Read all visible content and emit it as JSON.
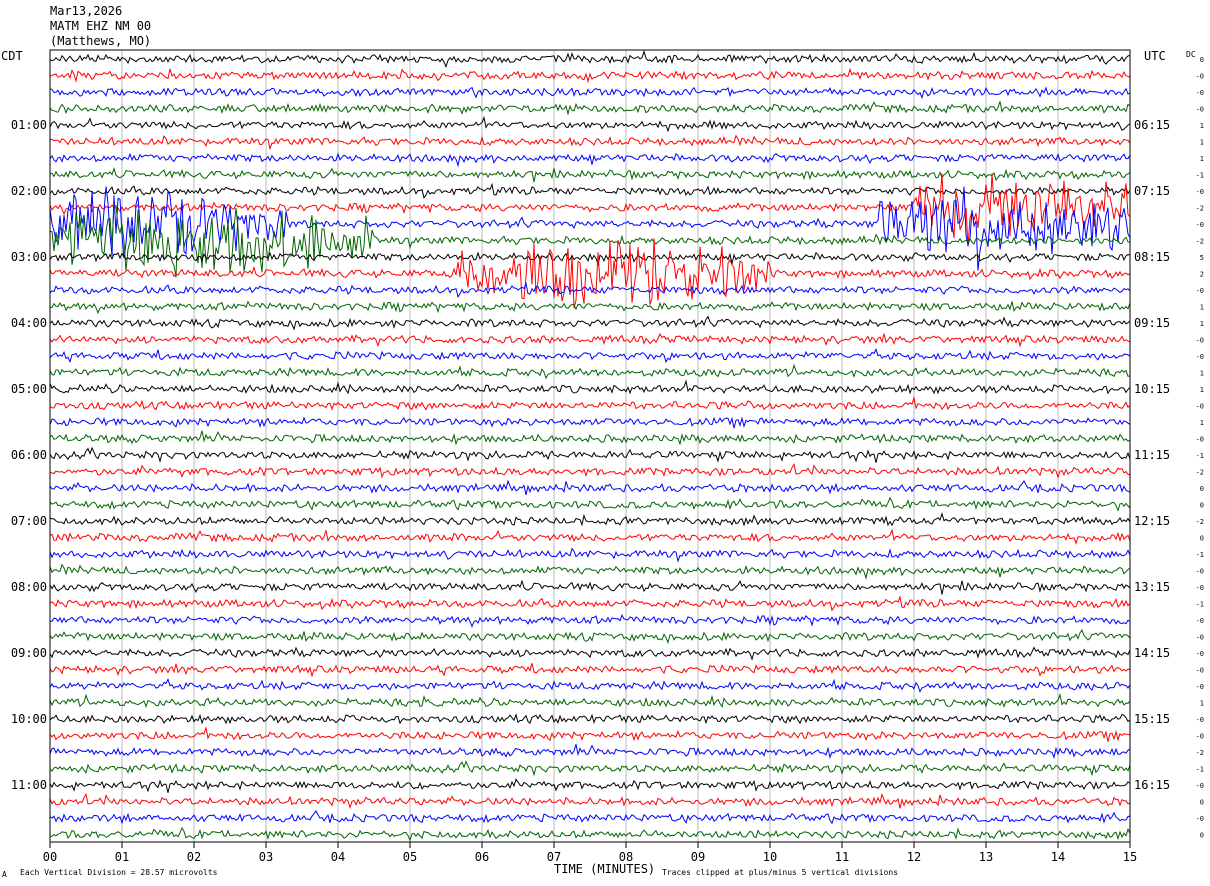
{
  "header": {
    "date": "Mar13,2026",
    "station": "MATM EHZ NM 00",
    "location": "(Matthews, MO)"
  },
  "axes": {
    "left_tz": "CDT",
    "right_tz": "UTC",
    "dc_label": "DC",
    "xlabel": "TIME (MINUTES)",
    "bottom_left_marker": "A",
    "footer_left": "Each Vertical Division =   28.57 microvolts",
    "footer_right": "Traces clipped at plus/minus 5 vertical divisions"
  },
  "chart_data": {
    "type": "line",
    "title": "",
    "x_ticks": [
      "00",
      "01",
      "02",
      "03",
      "04",
      "05",
      "06",
      "07",
      "08",
      "09",
      "10",
      "11",
      "12",
      "13",
      "14",
      "15"
    ],
    "xlim": [
      0,
      15
    ],
    "left_hour_labels": [
      "01:00",
      "02:00",
      "03:00",
      "04:00",
      "05:00",
      "06:00",
      "07:00",
      "08:00",
      "09:00",
      "10:00",
      "11:00"
    ],
    "right_hour_labels": [
      "06:15",
      "07:15",
      "08:15",
      "09:15",
      "10:15",
      "11:15",
      "12:15",
      "13:15",
      "14:15",
      "15:15",
      "16:15"
    ],
    "trace_count": 48,
    "minutes_per_trace": 15,
    "trace_colors": [
      "#000000",
      "#ff0000",
      "#0000ff",
      "#006400"
    ],
    "dc_offsets": [
      "0",
      "-0",
      "-0",
      "-0",
      "1",
      "1",
      "1",
      "-1",
      "-0",
      "-2",
      "-0",
      "-2",
      "5",
      "2",
      "-0",
      "1",
      "1",
      "-0",
      "-0",
      "1",
      "1",
      "-0",
      "1",
      "-0",
      "-1",
      "-2",
      "0",
      "0",
      "-2",
      "0",
      "-1",
      "-0",
      "-0",
      "-1",
      "-0",
      "-0",
      "-0",
      "-0",
      "-0",
      "1",
      "-0",
      "-0",
      "-2",
      "-1",
      "-0",
      "0",
      "-0",
      "0"
    ],
    "events": [
      {
        "trace": 10,
        "start_min": 0.0,
        "end_min": 3.3,
        "amplitude": "clipped"
      },
      {
        "trace": 11,
        "start_min": 0.0,
        "end_min": 4.5,
        "amplitude": "clipped"
      },
      {
        "trace": 9,
        "start_min": 12.0,
        "end_min": 15.0,
        "amplitude": "clipped"
      },
      {
        "trace": 10,
        "start_min": 11.5,
        "end_min": 15.0,
        "amplitude": "clipped"
      },
      {
        "trace": 13,
        "start_min": 5.6,
        "end_min": 10.0,
        "amplitude": "clipped"
      }
    ]
  }
}
